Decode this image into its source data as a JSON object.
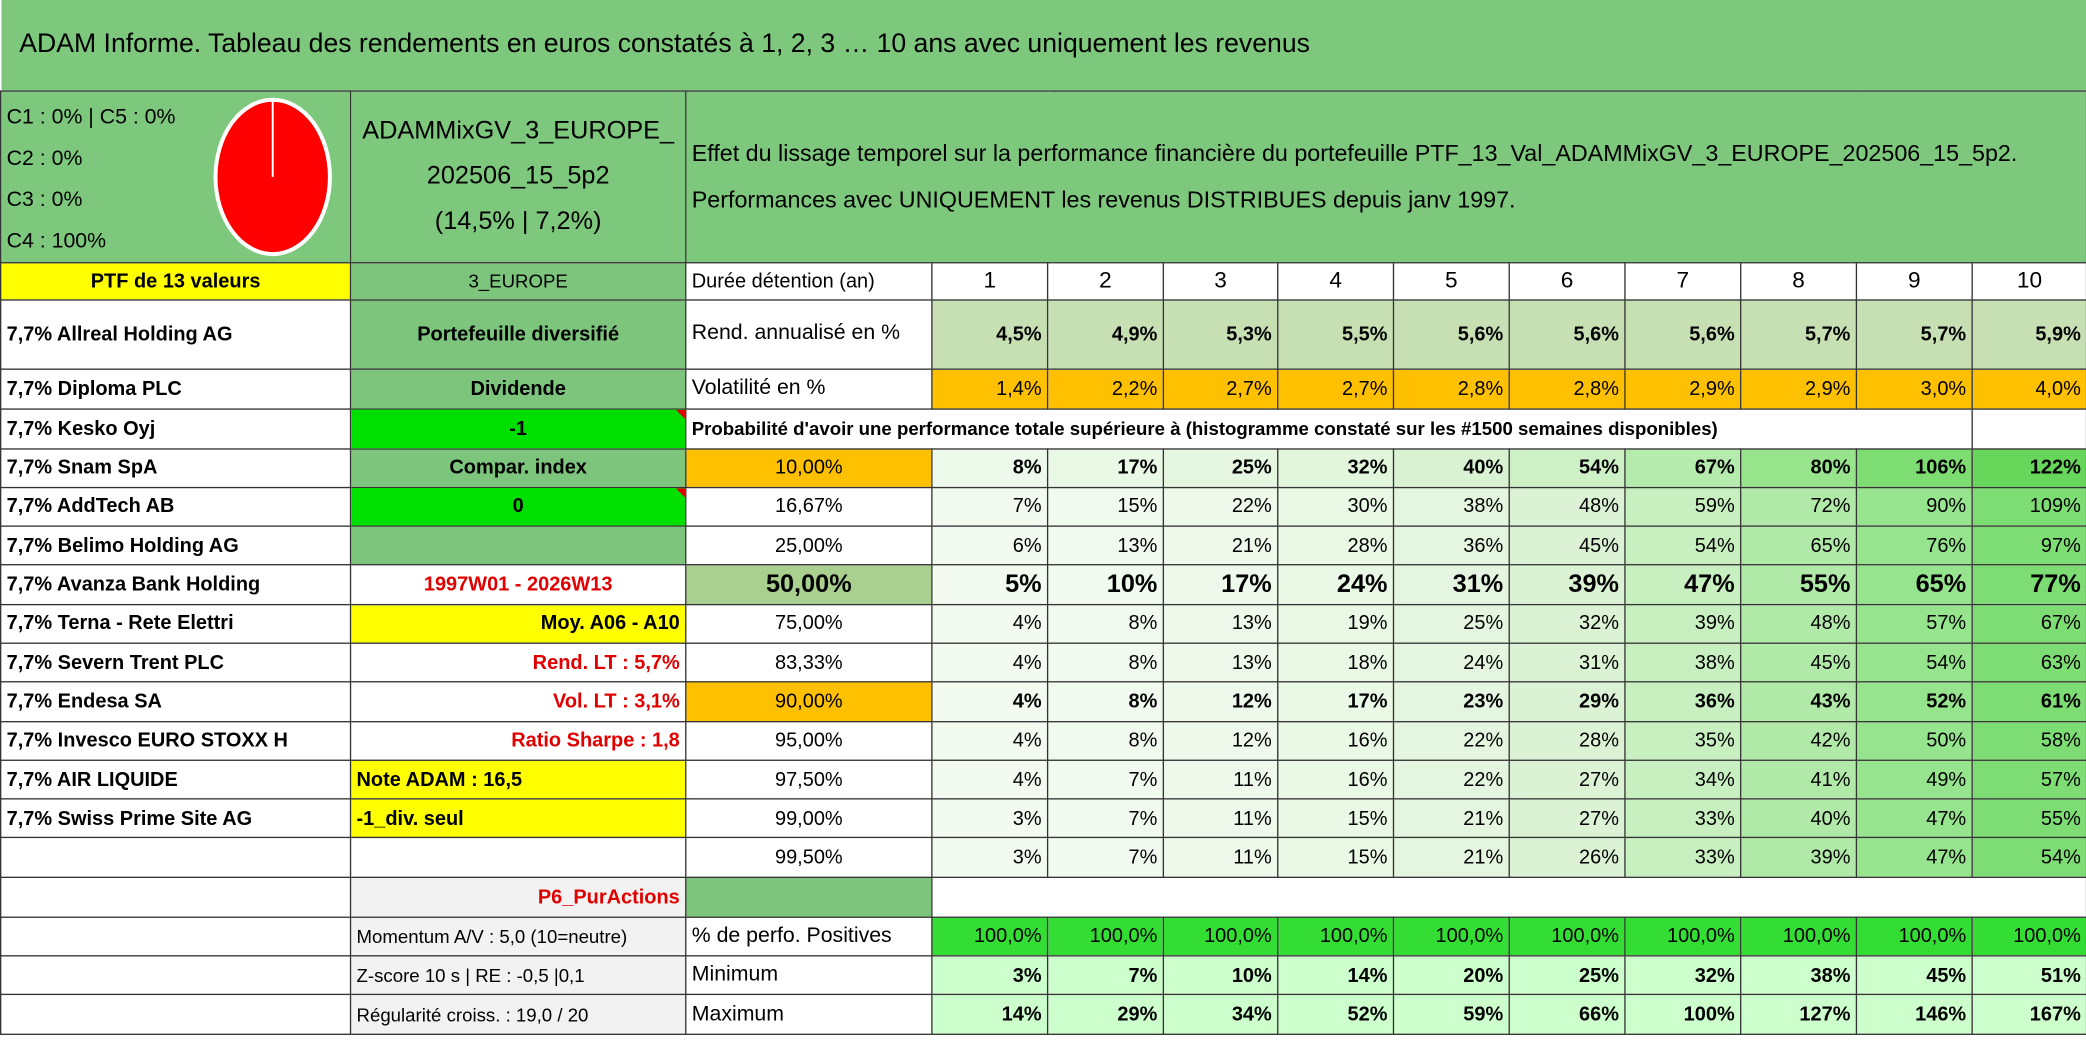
{
  "header": {
    "title": "ADAM Informe. Tableau des rendements en euros constatés à 1, 2, 3 … 10 ans avec uniquement les revenus"
  },
  "allocation": [
    "C1 : 0% | C5 : 0%",
    "C2 : 0%",
    "C3 : 0%",
    "C4 : 100%"
  ],
  "portfolio": {
    "name": "ADAMMixGV_3_EUROPE_202506_15_5p2",
    "stats": "(14,5% | 7,2%)"
  },
  "description": "Effet du lissage temporel sur la performance financière du portefeuille PTF_13_Val_ADAMMixGV_3_EUROPE_202506_15_5p2. Performances avec UNIQUEMENT les revenus DISTRIBUES depuis janv 1997.",
  "holdings_header": "PTF de 13 valeurs",
  "holdings": [
    "7,7% Allreal Holding AG",
    "7,7% Diploma PLC",
    "7,7% Kesko Oyj",
    "7,7% Snam SpA",
    "7,7% AddTech AB",
    "7,7% Belimo Holding AG",
    "7,7% Avanza Bank Holding",
    "7,7% Terna - Rete Elettri",
    "7,7% Severn Trent PLC",
    "7,7% Endesa SA",
    "7,7% Invesco EURO STOXX H",
    "7,7% AIR LIQUIDE",
    "7,7% Swiss Prime Site AG"
  ],
  "info": [
    "3_EUROPE",
    "Portefeuille diversifié",
    "Dividende",
    "-1",
    "Compar. index",
    "0",
    "1997W01 - 2026W13",
    "Moy. A06 - A10",
    "Rend. LT : 5,7%",
    "Vol. LT : 3,1%",
    "Ratio Sharpe : 1,8",
    "Note ADAM : 16,5",
    "-1_div. seul",
    "P6_PurActions",
    "Momentum A/V : 5,0 (10=neutre)",
    "Z-score 10 s | RE : -0,5 |0,1",
    "Régularité croiss. : 19,0 / 20"
  ],
  "perf_table": {
    "header": {
      "label": "Durée détention (an)",
      "years": [
        1,
        2,
        3,
        4,
        5,
        6,
        7,
        8,
        9,
        10
      ]
    },
    "rows": [
      {
        "label": "Rend. annualisé en %",
        "values": [
          "4,5%",
          "4,9%",
          "5,3%",
          "5,5%",
          "5,6%",
          "5,6%",
          "5,6%",
          "5,7%",
          "5,7%",
          "5,9%"
        ]
      },
      {
        "label": "Volatilité en %",
        "values": [
          "1,4%",
          "2,2%",
          "2,7%",
          "2,7%",
          "2,8%",
          "2,8%",
          "2,9%",
          "2,9%",
          "3,0%",
          "4,0%"
        ]
      }
    ],
    "probability_title": "Probabilité d'avoir une performance totale supérieure à (histogramme constaté sur les #1500 semaines disponibles)",
    "quantiles": [
      {
        "label": "10,00%",
        "values": [
          "8%",
          "17%",
          "25%",
          "32%",
          "40%",
          "54%",
          "67%",
          "80%",
          "106%",
          "122%"
        ]
      },
      {
        "label": "16,67%",
        "values": [
          "7%",
          "15%",
          "22%",
          "30%",
          "38%",
          "48%",
          "59%",
          "72%",
          "90%",
          "109%"
        ]
      },
      {
        "label": "25,00%",
        "values": [
          "6%",
          "13%",
          "21%",
          "28%",
          "36%",
          "45%",
          "54%",
          "65%",
          "76%",
          "97%"
        ]
      },
      {
        "label": "50,00%",
        "values": [
          "5%",
          "10%",
          "17%",
          "24%",
          "31%",
          "39%",
          "47%",
          "55%",
          "65%",
          "77%"
        ]
      },
      {
        "label": "75,00%",
        "values": [
          "4%",
          "8%",
          "13%",
          "19%",
          "25%",
          "32%",
          "39%",
          "48%",
          "57%",
          "67%"
        ]
      },
      {
        "label": "83,33%",
        "values": [
          "4%",
          "8%",
          "13%",
          "18%",
          "24%",
          "31%",
          "38%",
          "45%",
          "54%",
          "63%"
        ]
      },
      {
        "label": "90,00%",
        "values": [
          "4%",
          "8%",
          "12%",
          "17%",
          "23%",
          "29%",
          "36%",
          "43%",
          "52%",
          "61%"
        ]
      },
      {
        "label": "95,00%",
        "values": [
          "4%",
          "8%",
          "12%",
          "16%",
          "22%",
          "28%",
          "35%",
          "42%",
          "50%",
          "58%"
        ]
      },
      {
        "label": "97,50%",
        "values": [
          "4%",
          "7%",
          "11%",
          "16%",
          "22%",
          "27%",
          "34%",
          "41%",
          "49%",
          "57%"
        ]
      },
      {
        "label": "99,00%",
        "values": [
          "3%",
          "7%",
          "11%",
          "15%",
          "21%",
          "27%",
          "33%",
          "40%",
          "47%",
          "55%"
        ]
      },
      {
        "label": "99,50%",
        "values": [
          "3%",
          "7%",
          "11%",
          "15%",
          "21%",
          "26%",
          "33%",
          "39%",
          "47%",
          "54%"
        ]
      }
    ],
    "bottom_rows": [
      {
        "label": "% de perfo. Positives",
        "values": [
          "100,0%",
          "100,0%",
          "100,0%",
          "100,0%",
          "100,0%",
          "100,0%",
          "100,0%",
          "100,0%",
          "100,0%",
          "100,0%"
        ]
      },
      {
        "label": "Minimum",
        "values": [
          "3%",
          "7%",
          "10%",
          "14%",
          "20%",
          "25%",
          "32%",
          "38%",
          "45%",
          "51%"
        ]
      },
      {
        "label": "Maximum",
        "values": [
          "14%",
          "29%",
          "34%",
          "52%",
          "59%",
          "66%",
          "100%",
          "127%",
          "146%",
          "167%"
        ]
      }
    ]
  }
}
